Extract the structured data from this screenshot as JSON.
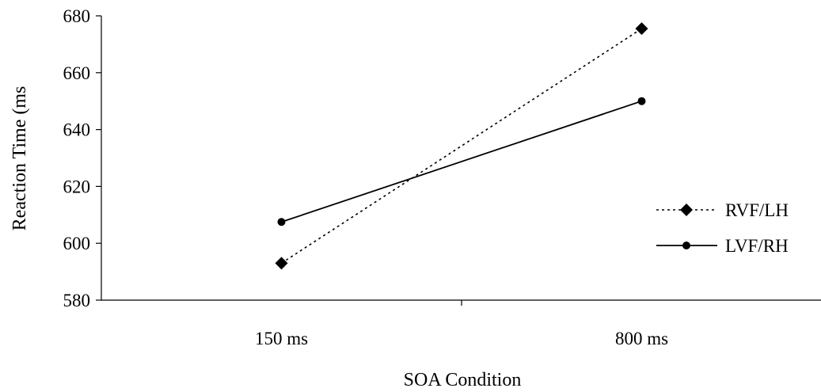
{
  "chart_data": {
    "type": "line",
    "title": "",
    "xlabel": "SOA Condition",
    "ylabel": "Reaction Time (ms",
    "categories": [
      "150 ms",
      "800 ms"
    ],
    "ylim": [
      580,
      680
    ],
    "yticks": [
      580,
      600,
      620,
      640,
      660,
      680
    ],
    "ytick_labels": [
      "580",
      "600",
      "620",
      "640",
      "660",
      "680"
    ],
    "grid": false,
    "legend_position": "right",
    "series": [
      {
        "name": "RVF/LH",
        "values": [
          593,
          675.5
        ],
        "line_style": "dotted",
        "marker": "diamond",
        "color": "#000000"
      },
      {
        "name": "LVF/RH",
        "values": [
          607.5,
          650
        ],
        "line_style": "solid",
        "marker": "circle",
        "color": "#000000"
      }
    ]
  }
}
